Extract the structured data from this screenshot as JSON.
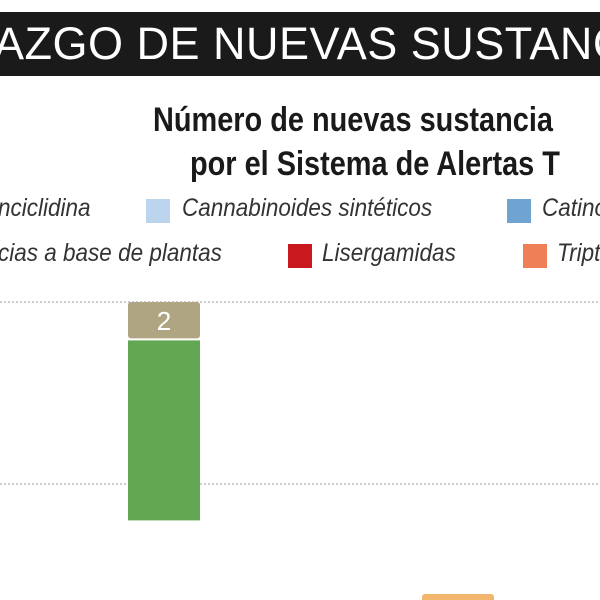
{
  "banner": {
    "text": "AZGO DE NUEVAS SUSTANCIA"
  },
  "chart_data": {
    "type": "bar",
    "stacked": true,
    "title_line1": "Número de nuevas sustancia",
    "title_line2": "por el Sistema de Alertas T",
    "legend": [
      {
        "label": "nciclidina",
        "color": ""
      },
      {
        "label": "Cannabinoides sintéticos",
        "color": "#bcd4ee"
      },
      {
        "label": "Catino",
        "color": "#6fa3d2"
      },
      {
        "label": "cias a base de plantas",
        "color": ""
      },
      {
        "label": "Lisergamidas",
        "color": "#c9191e"
      },
      {
        "label": "Tript",
        "color": "#ef7f56"
      }
    ],
    "grid": true,
    "series": [
      {
        "color": "#62a752",
        "values": [
          10
        ]
      },
      {
        "color": "#b0a583",
        "values": [
          2
        ]
      }
    ],
    "partial_bar": {
      "color": "#f2b76c"
    }
  }
}
